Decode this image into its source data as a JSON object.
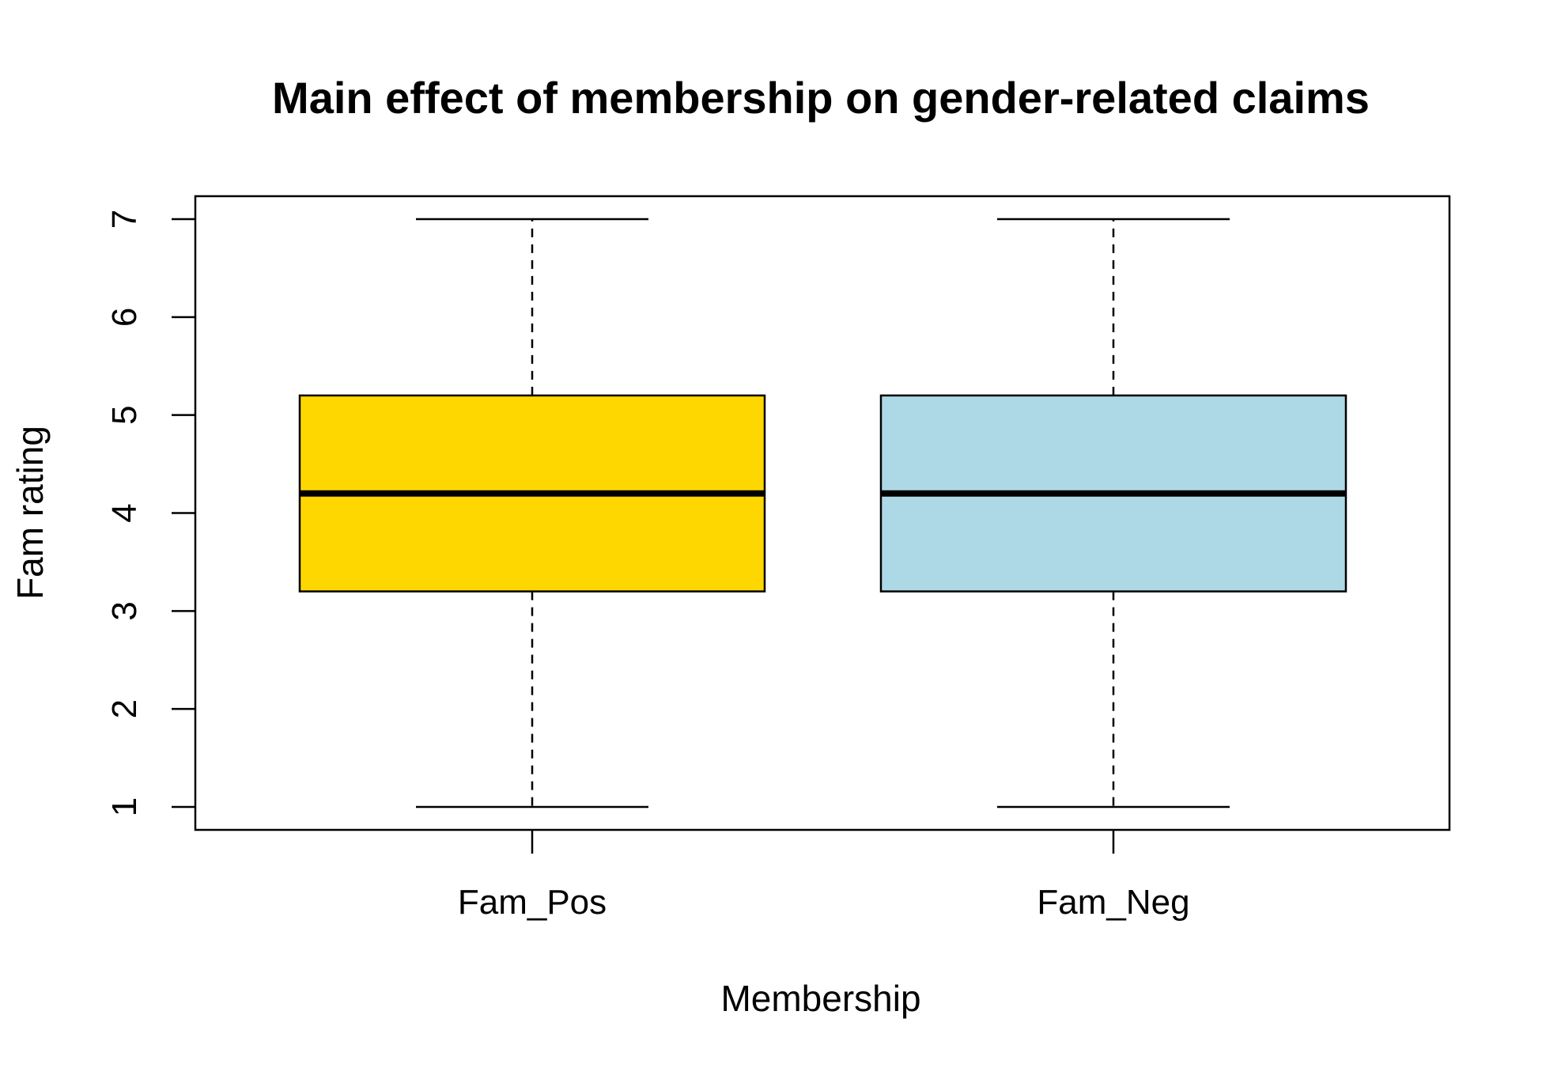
{
  "chart_data": {
    "type": "boxplot",
    "title": "Main effect of membership on gender-related claims",
    "xlabel": "Membership",
    "ylabel": "Fam rating",
    "categories": [
      "Fam_Pos",
      "Fam_Neg"
    ],
    "ylim": [
      1,
      7
    ],
    "yticks": [
      1,
      2,
      3,
      4,
      5,
      6,
      7
    ],
    "boxes": [
      {
        "category": "Fam_Pos",
        "min": 1,
        "q1": 3.2,
        "median": 4.2,
        "q3": 5.2,
        "max": 7,
        "color": "#FFD700"
      },
      {
        "category": "Fam_Neg",
        "min": 1,
        "q1": 3.2,
        "median": 4.2,
        "q3": 5.2,
        "max": 7,
        "color": "#ADD8E6"
      }
    ],
    "grid": false,
    "legend": "none"
  }
}
